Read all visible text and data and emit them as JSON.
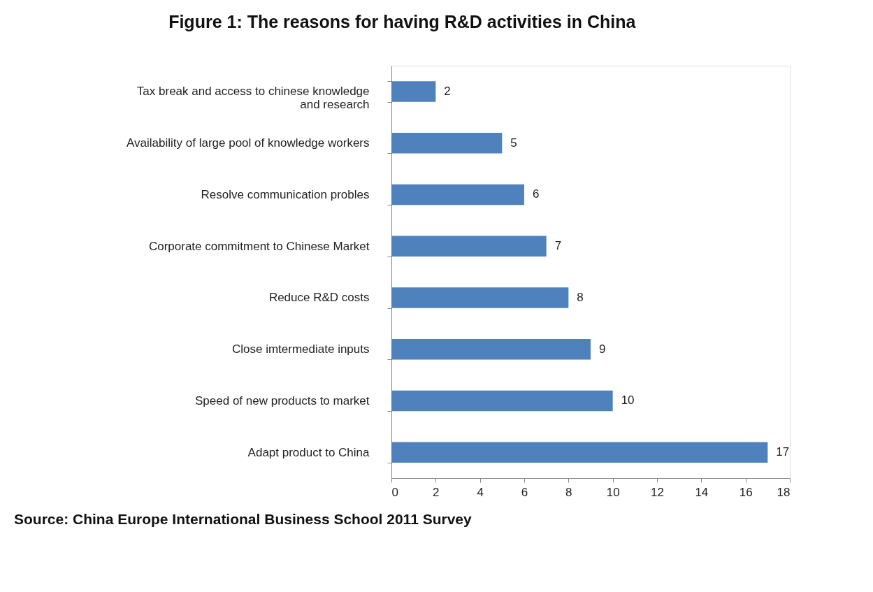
{
  "chart_data": {
    "type": "bar",
    "orientation": "horizontal",
    "title": "Figure 1: The reasons for having R&D activities in China",
    "categories": [
      "Tax break and access to chinese knowledge and research",
      "Availability of large pool of knowledge workers",
      "Resolve communication probles",
      "Corporate commitment to Chinese Market",
      "Reduce R&D costs",
      "Close imtermediate inputs",
      "Speed of new products to market",
      "Adapt product to China"
    ],
    "values": [
      2,
      5,
      6,
      7,
      8,
      9,
      10,
      17
    ],
    "color": "#4f81bd",
    "xlim": [
      0,
      18
    ],
    "xticks": [
      0,
      2,
      4,
      6,
      8,
      10,
      12,
      14,
      16,
      18
    ],
    "grid": false,
    "data_labels": true,
    "annotations": [
      "Source:  China Europe International Business School 2011 Survey"
    ]
  }
}
